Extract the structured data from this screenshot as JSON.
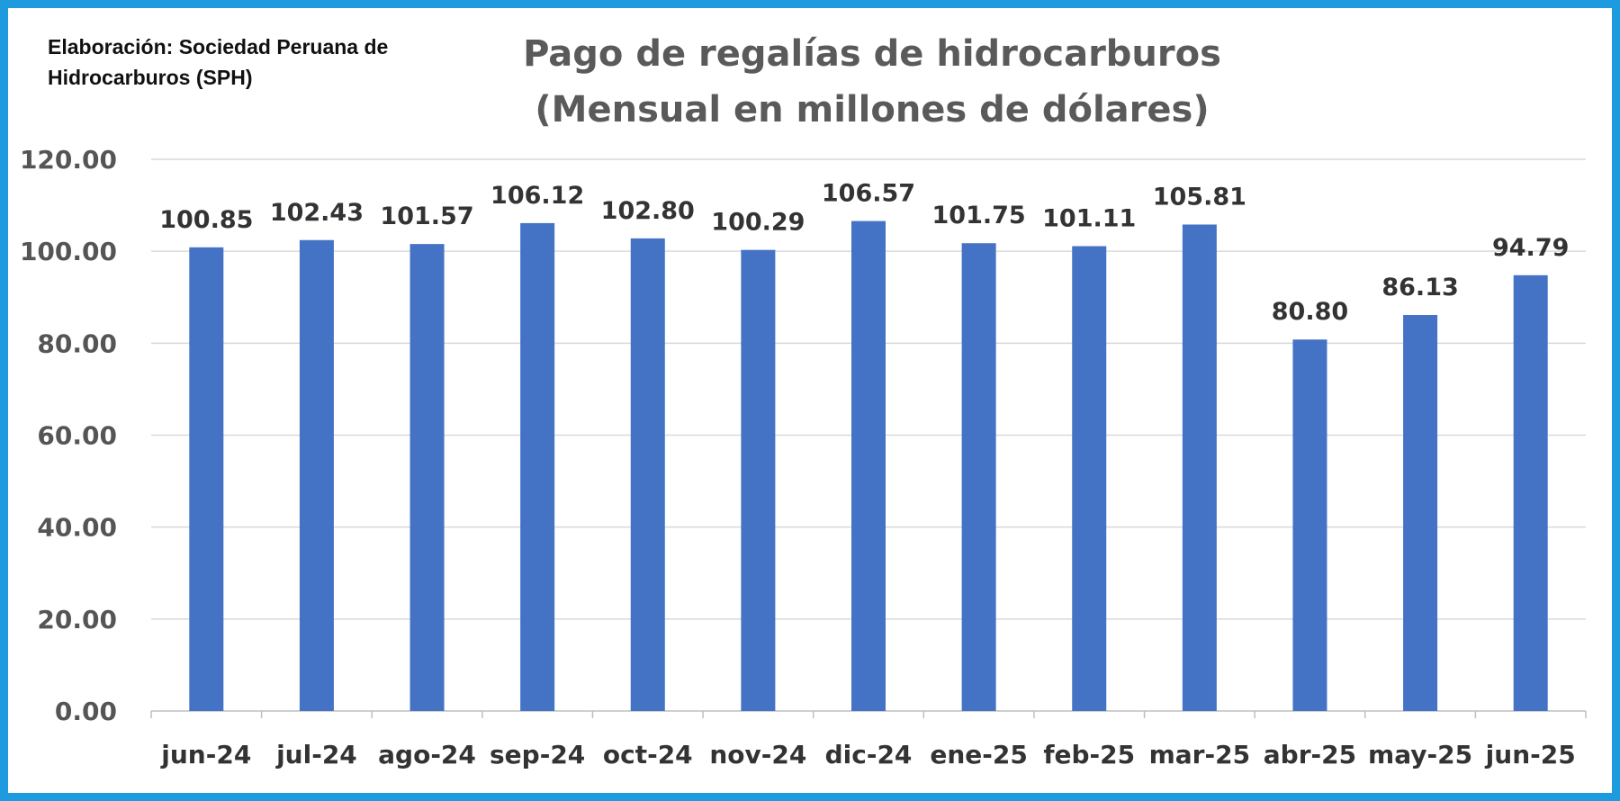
{
  "credit": "Elaboración: Sociedad Peruana de\nHidrocarburos (SPH)",
  "colors": {
    "frame": "#1e9bde",
    "bar": "#4472c4",
    "grid": "#d9d9d9"
  },
  "chart_data": {
    "type": "bar",
    "title_lines": [
      "Pago de regalías de hidrocarburos",
      "(Mensual en millones de dólares)"
    ],
    "categories": [
      "jun-24",
      "jul-24",
      "ago-24",
      "sep-24",
      "oct-24",
      "nov-24",
      "dic-24",
      "ene-25",
      "feb-25",
      "mar-25",
      "abr-25",
      "may-25",
      "jun-25"
    ],
    "values": [
      100.85,
      102.43,
      101.57,
      106.12,
      102.8,
      100.29,
      106.57,
      101.75,
      101.11,
      105.81,
      80.8,
      86.13,
      94.79
    ],
    "data_labels": [
      "100.85",
      "102.43",
      "101.57",
      "106.12",
      "102.80",
      "100.29",
      "106.57",
      "101.75",
      "101.11",
      "105.81",
      "80.80",
      "86.13",
      "94.79"
    ],
    "y_ticks": [
      "0.00",
      "20.00",
      "40.00",
      "60.00",
      "80.00",
      "100.00",
      "120.00"
    ],
    "ylim": [
      0,
      120
    ],
    "grid": true,
    "legend": "none"
  }
}
